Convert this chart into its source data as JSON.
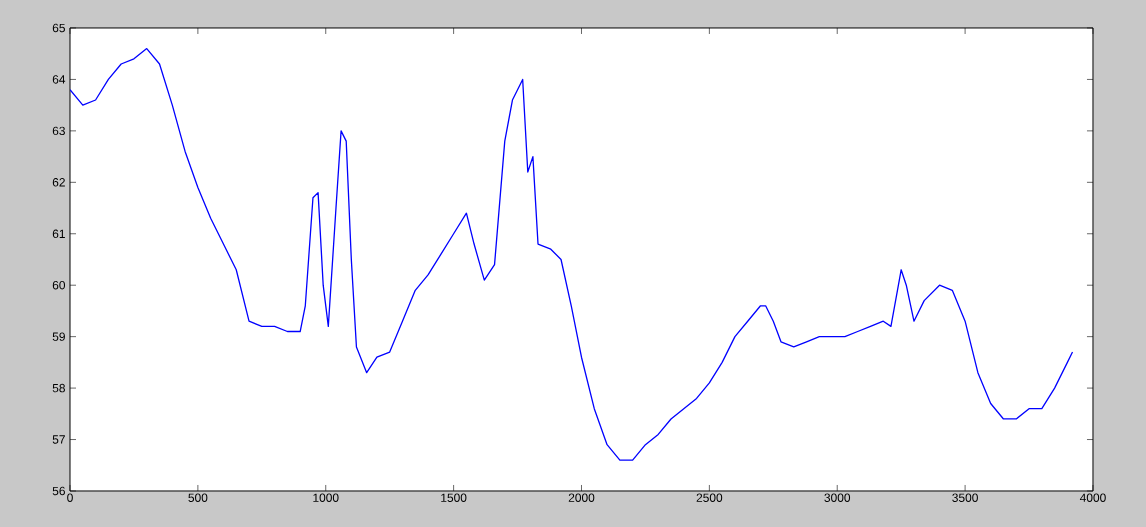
{
  "chart_data": {
    "type": "line",
    "color": "#0000ff",
    "xlim": [
      0,
      4000
    ],
    "ylim": [
      56,
      65
    ],
    "xticks": [
      0,
      500,
      1000,
      1500,
      2000,
      2500,
      3000,
      3500,
      4000
    ],
    "yticks": [
      56,
      57,
      58,
      59,
      60,
      61,
      62,
      63,
      64,
      65
    ],
    "x": [
      0,
      50,
      100,
      150,
      200,
      250,
      300,
      350,
      400,
      450,
      500,
      550,
      600,
      650,
      700,
      750,
      800,
      850,
      900,
      920,
      950,
      970,
      990,
      1010,
      1040,
      1060,
      1080,
      1100,
      1120,
      1160,
      1200,
      1250,
      1300,
      1350,
      1400,
      1450,
      1500,
      1550,
      1580,
      1620,
      1660,
      1700,
      1730,
      1770,
      1790,
      1810,
      1830,
      1880,
      1920,
      1960,
      2000,
      2050,
      2100,
      2150,
      2200,
      2250,
      2300,
      2350,
      2400,
      2450,
      2500,
      2550,
      2600,
      2650,
      2700,
      2720,
      2750,
      2780,
      2830,
      2880,
      2930,
      2980,
      3030,
      3080,
      3130,
      3180,
      3210,
      3250,
      3270,
      3300,
      3340,
      3400,
      3450,
      3500,
      3550,
      3600,
      3650,
      3700,
      3750,
      3800,
      3850,
      3900,
      3920
    ],
    "values": [
      63.8,
      63.5,
      63.6,
      64.0,
      64.3,
      64.4,
      64.6,
      64.3,
      63.5,
      62.6,
      61.9,
      61.3,
      60.8,
      60.3,
      59.3,
      59.2,
      59.2,
      59.1,
      59.1,
      59.6,
      61.7,
      61.8,
      60.0,
      59.2,
      61.5,
      63.0,
      62.8,
      60.5,
      58.8,
      58.3,
      58.6,
      58.7,
      59.3,
      59.9,
      60.2,
      60.6,
      61.0,
      61.4,
      60.8,
      60.1,
      60.4,
      62.8,
      63.6,
      64.0,
      62.2,
      62.5,
      60.8,
      60.7,
      60.5,
      59.6,
      58.6,
      57.6,
      56.9,
      56.6,
      56.6,
      56.9,
      57.1,
      57.4,
      57.6,
      57.8,
      58.1,
      58.5,
      59.0,
      59.3,
      59.6,
      59.6,
      59.3,
      58.9,
      58.8,
      58.9,
      59.0,
      59.0,
      59.0,
      59.1,
      59.2,
      59.3,
      59.2,
      60.3,
      60.0,
      59.3,
      59.7,
      60.0,
      59.9,
      59.3,
      58.3,
      57.7,
      57.4,
      57.4,
      57.6,
      57.6,
      58.0,
      58.5,
      58.7
    ],
    "grid": false
  }
}
